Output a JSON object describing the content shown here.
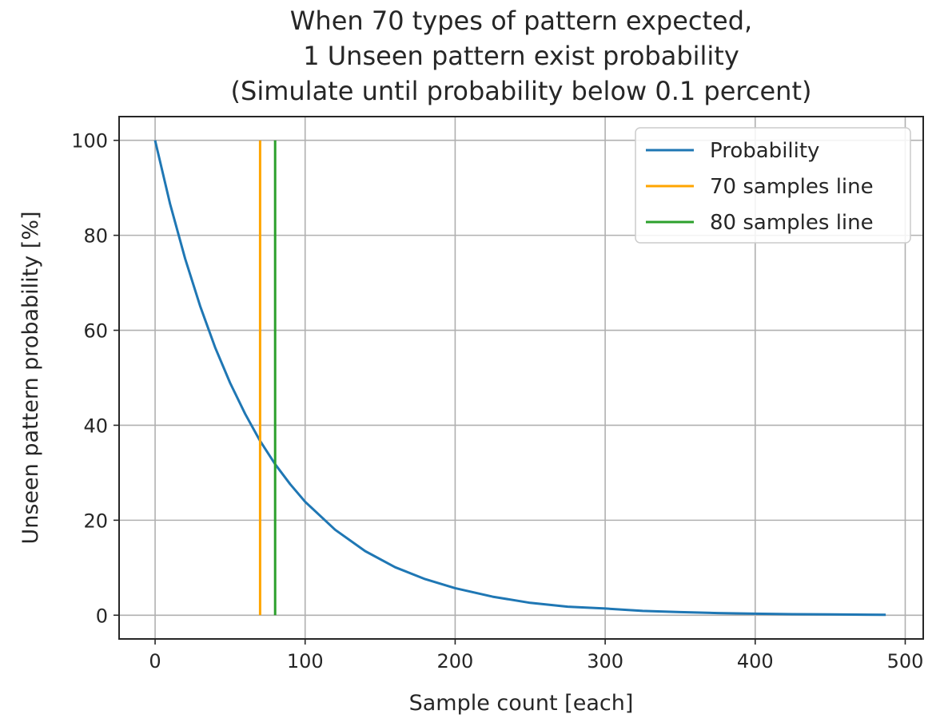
{
  "chart_data": {
    "type": "line",
    "title_lines": [
      "When 70 types of pattern expected,",
      "1 Unseen pattern exist probability",
      "(Simulate until probability below 0.1 percent)"
    ],
    "xlabel": "Sample count [each]",
    "ylabel": "Unseen pattern probability [%]",
    "xlim": [
      -24,
      512
    ],
    "ylim": [
      -5,
      105
    ],
    "x_ticks": [
      0,
      100,
      200,
      300,
      400,
      500
    ],
    "y_ticks": [
      0,
      20,
      40,
      60,
      80,
      100
    ],
    "grid": true,
    "legend_position": "top-right",
    "series": [
      {
        "name": "Probability",
        "color": "#1f77b4",
        "x": [
          0,
          10,
          20,
          30,
          40,
          50,
          60,
          70,
          80,
          90,
          100,
          120,
          140,
          160,
          180,
          200,
          225,
          250,
          275,
          300,
          325,
          350,
          375,
          400,
          425,
          450,
          475,
          487
        ],
        "y": [
          100,
          86.6,
          75.1,
          65.1,
          56.4,
          48.9,
          42.4,
          36.7,
          31.8,
          27.6,
          23.9,
          18.0,
          13.5,
          10.1,
          7.6,
          5.7,
          3.9,
          2.6,
          1.8,
          1.4,
          0.9,
          0.65,
          0.45,
          0.32,
          0.22,
          0.16,
          0.11,
          0.1
        ]
      },
      {
        "name": "70 samples line",
        "color": "#ffa500",
        "x": [
          70,
          70
        ],
        "y": [
          0,
          100
        ]
      },
      {
        "name": "80 samples line",
        "color": "#2ca02c",
        "x": [
          80,
          80
        ],
        "y": [
          0,
          100
        ]
      }
    ]
  }
}
